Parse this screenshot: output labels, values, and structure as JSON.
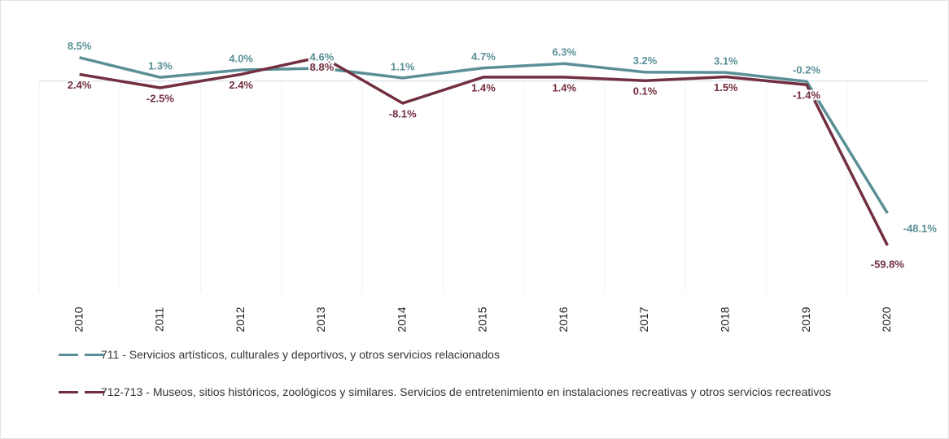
{
  "chart_data": {
    "type": "line",
    "categories": [
      "2010",
      "2011",
      "2012",
      "2013",
      "2014",
      "2015",
      "2016",
      "2017",
      "2018",
      "2019",
      "2020"
    ],
    "series": [
      {
        "name": "711 - Servicios artísticos, culturales y deportivos, y otros servicios relacionados",
        "color": "#5a8f96",
        "values": [
          8.5,
          1.3,
          4.0,
          4.6,
          1.1,
          4.7,
          6.3,
          3.2,
          3.1,
          -0.2,
          -48.1
        ],
        "value_labels": [
          "8.5%",
          "1.3%",
          "4.0%",
          "4.6%",
          "1.1%",
          "4.7%",
          "6.3%",
          "3.2%",
          "3.1%",
          "-0.2%",
          "-48.1%"
        ]
      },
      {
        "name": "712-713 - Museos, sitios históricos, zoológicos y similares. Servicios de entretenimiento en instalaciones recreativas y otros servicios recreativos",
        "color": "#722f3f",
        "values": [
          2.4,
          -2.5,
          2.4,
          8.8,
          -8.1,
          1.4,
          1.4,
          0.1,
          1.5,
          -1.4,
          -59.8
        ],
        "value_labels": [
          "2.4%",
          "-2.5%",
          "2.4%",
          "8.8%",
          "-8.1%",
          "1.4%",
          "1.4%",
          "0.1%",
          "1.5%",
          "-1.4%",
          "-59.8%"
        ]
      }
    ],
    "ylim": [
      -77,
      25
    ]
  }
}
